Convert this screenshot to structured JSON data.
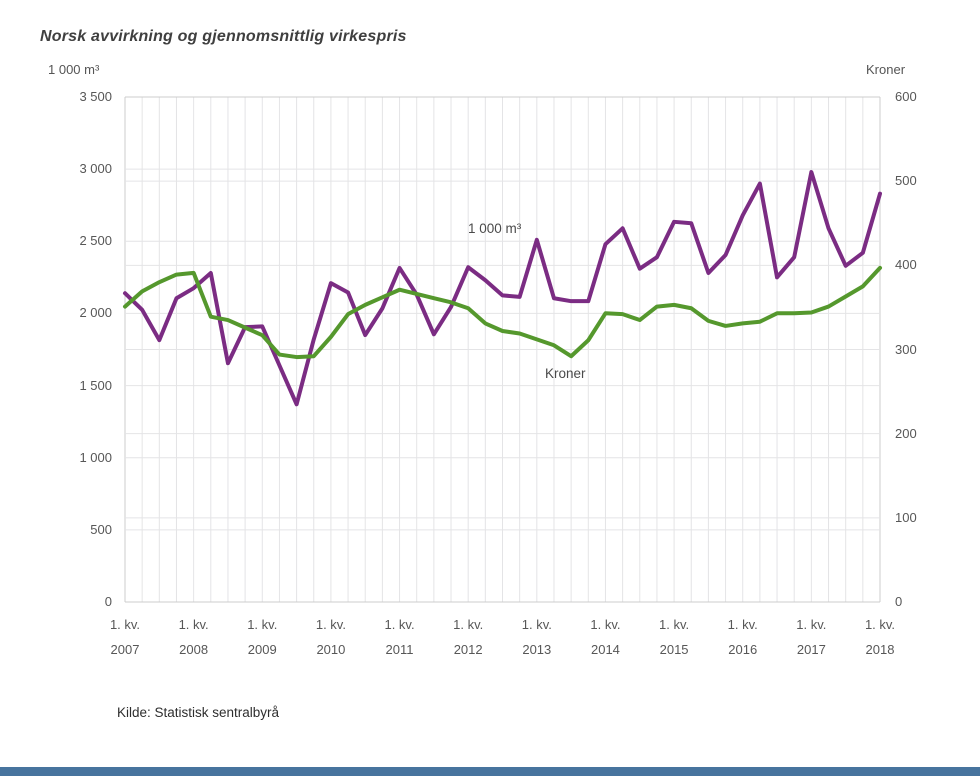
{
  "title": "Norsk avvirkning og gjennomsnittlig virkespris",
  "source": "Kilde: Statistisk sentralbyrå",
  "colors": {
    "volume_line": "#7b2c83",
    "price_line": "#55982d",
    "gridline": "#e4e4e6",
    "plot_border": "#cccccc",
    "bottom_bar": "#47749e",
    "text": "#575757"
  },
  "chart_data": {
    "type": "line",
    "title": "Norsk avvirkning og gjennomsnittlig virkespris",
    "x_start": "1. kv. 2007",
    "x_end": "1. kv. 2018",
    "x_frequency": "quarterly",
    "quarter_label": "1. kv.",
    "years": [
      "2007",
      "2008",
      "2009",
      "2010",
      "2011",
      "2012",
      "2013",
      "2014",
      "2015",
      "2016",
      "2017",
      "2018"
    ],
    "left_axis": {
      "unit": "1 000 m³",
      "min": 0,
      "max": 3500,
      "step": 500,
      "tick_labels_bottom_up": [
        "0",
        "500",
        "1 000",
        "1 500",
        "2 000",
        "2 500",
        "3 000",
        "3 500"
      ]
    },
    "right_axis": {
      "unit": "Kroner",
      "min": 0,
      "max": 600,
      "step": 100,
      "tick_labels_bottom_up": [
        "0",
        "100",
        "200",
        "300",
        "400",
        "500",
        "600"
      ]
    },
    "grid": true,
    "series": [
      {
        "name": "1 000 m³",
        "axis": "left",
        "color": "#7b2c83",
        "values": [
          2140,
          2025,
          1815,
          2105,
          2175,
          2280,
          1655,
          1905,
          1910,
          1640,
          1370,
          1820,
          2210,
          2145,
          1850,
          2035,
          2315,
          2130,
          1855,
          2045,
          2320,
          2230,
          2125,
          2115,
          2510,
          2105,
          2085,
          2085,
          2480,
          2590,
          2310,
          2390,
          2635,
          2625,
          2280,
          2405,
          2680,
          2900,
          2250,
          2390,
          2980,
          2590,
          2330,
          2420,
          2830
        ]
      },
      {
        "name": "Kroner",
        "axis": "right",
        "color": "#55982d",
        "values": [
          351,
          369,
          380,
          389,
          391,
          339,
          335,
          326,
          317,
          294,
          291,
          292,
          315,
          342,
          353,
          362,
          371,
          366,
          361,
          356,
          349,
          331,
          322,
          319,
          312,
          305,
          292,
          311,
          343,
          342,
          335,
          351,
          353,
          349,
          334,
          328,
          331,
          333,
          343,
          343,
          344,
          351,
          363,
          375,
          397
        ]
      }
    ]
  },
  "labels": {
    "volume_series": "1 000 m³",
    "price_series": "Kroner"
  }
}
